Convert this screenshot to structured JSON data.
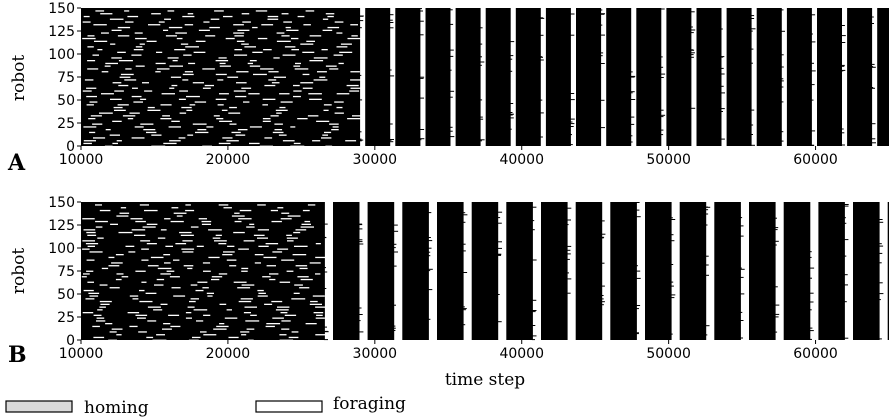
{
  "chart_data": [
    {
      "type": "raster",
      "panel_label": "A",
      "xlabel": "",
      "ylabel": "robot",
      "xlim": [
        10000,
        65000
      ],
      "ylim": [
        0,
        150
      ],
      "x_ticks": [
        10000,
        20000,
        30000,
        40000,
        50000,
        60000
      ],
      "y_ticks": [
        0,
        25,
        50,
        75,
        100,
        125,
        150
      ],
      "states": [
        "homing",
        "foraging"
      ],
      "synchronization_onset": 29000,
      "sync_period": 2050,
      "sync_stripes": [
        {
          "start": 29000,
          "end": 29350
        },
        {
          "start": 31050,
          "end": 31400
        },
        {
          "start": 33100,
          "end": 33450
        },
        {
          "start": 35150,
          "end": 35500
        },
        {
          "start": 37200,
          "end": 37550
        },
        {
          "start": 39250,
          "end": 39600
        },
        {
          "start": 41300,
          "end": 41650
        },
        {
          "start": 43350,
          "end": 43700
        },
        {
          "start": 45400,
          "end": 45750
        },
        {
          "start": 47450,
          "end": 47800
        },
        {
          "start": 49500,
          "end": 49850
        },
        {
          "start": 51550,
          "end": 51900
        },
        {
          "start": 53600,
          "end": 53950
        },
        {
          "start": 55650,
          "end": 56000
        },
        {
          "start": 57700,
          "end": 58050
        },
        {
          "start": 59750,
          "end": 60100
        },
        {
          "start": 61800,
          "end": 62150
        },
        {
          "start": 63850,
          "end": 64200
        }
      ]
    },
    {
      "type": "raster",
      "panel_label": "B",
      "xlabel": "time step",
      "ylabel": "robot",
      "xlim": [
        10000,
        65000
      ],
      "ylim": [
        0,
        150
      ],
      "x_ticks": [
        10000,
        20000,
        30000,
        40000,
        50000,
        60000
      ],
      "y_ticks": [
        0,
        25,
        50,
        75,
        100,
        125,
        150
      ],
      "states": [
        "homing",
        "foraging"
      ],
      "synchronization_onset": 26600,
      "sync_period": 2360,
      "sync_stripes": [
        {
          "start": 26600,
          "end": 27150
        },
        {
          "start": 28960,
          "end": 29510
        },
        {
          "start": 31320,
          "end": 31870
        },
        {
          "start": 33680,
          "end": 34230
        },
        {
          "start": 36040,
          "end": 36590
        },
        {
          "start": 38400,
          "end": 38950
        },
        {
          "start": 40760,
          "end": 41310
        },
        {
          "start": 43120,
          "end": 43670
        },
        {
          "start": 45480,
          "end": 46030
        },
        {
          "start": 47840,
          "end": 48390
        },
        {
          "start": 50200,
          "end": 50750
        },
        {
          "start": 52560,
          "end": 53110
        },
        {
          "start": 54920,
          "end": 55470
        },
        {
          "start": 57280,
          "end": 57830
        },
        {
          "start": 59640,
          "end": 60190
        },
        {
          "start": 62000,
          "end": 62550
        },
        {
          "start": 64360,
          "end": 64910
        }
      ]
    }
  ],
  "legend": {
    "items": [
      {
        "label": "homing",
        "color": "#d9d9d9"
      },
      {
        "label": "foraging",
        "color": "#ffffff"
      }
    ]
  }
}
